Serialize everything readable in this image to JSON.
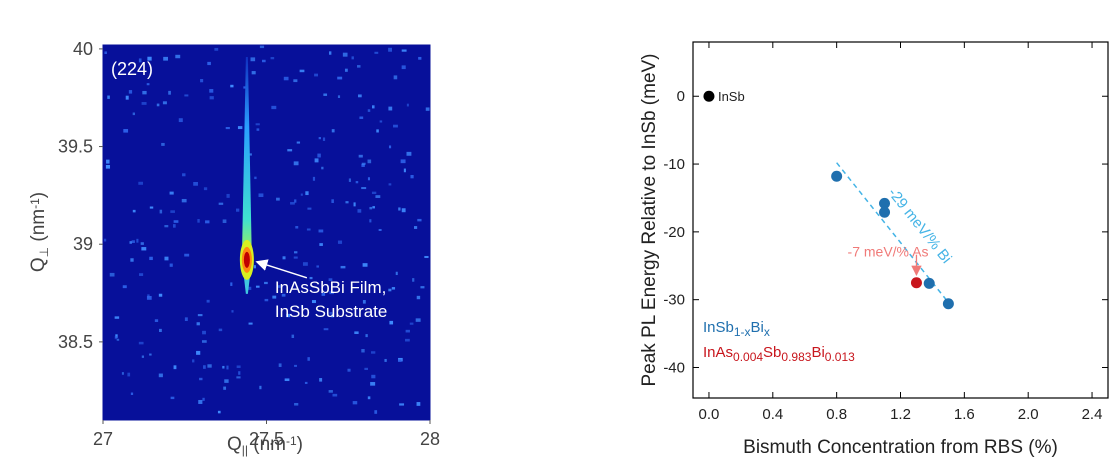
{
  "chart_data": [
    {
      "type": "heatmap",
      "title": "(224)",
      "xlabel": [
        {
          "text": "Q"
        },
        {
          "text": "||",
          "sub": true
        },
        {
          "text": " (nm"
        },
        {
          "text": "-1",
          "sup": true
        },
        {
          "text": ")"
        }
      ],
      "ylabel": [
        {
          "text": "Q"
        },
        {
          "text": "⊥",
          "sub": true
        },
        {
          "text": " (nm"
        },
        {
          "text": "-1",
          "sup": true
        },
        {
          "text": ")"
        }
      ],
      "xlim": [
        27,
        28
      ],
      "xticks": [
        27,
        27.5,
        28
      ],
      "ylim": [
        38.1,
        40.02
      ],
      "yticks": [
        40,
        39.5,
        39,
        38.5
      ],
      "peak": {
        "x": 27.44,
        "y": 38.92
      },
      "annotation": [
        "InAsSbBi Film,",
        "InSb Substrate"
      ]
    },
    {
      "type": "scatter",
      "xlabel": "Bismuth Concentration from RBS (%)",
      "ylabel": "Peak PL Energy Relative to InSb (meV)",
      "xlim": [
        -0.1,
        2.5
      ],
      "xticks": [
        {
          "value": 0,
          "label": "0.0"
        },
        0.4,
        0.8,
        1.2,
        1.6,
        {
          "value": 2,
          "label": "2.0"
        },
        2.4
      ],
      "ylim": [
        -44.5,
        8
      ],
      "yticks": [
        0,
        -10,
        -20,
        -30,
        -40
      ],
      "series": [
        {
          "name": [
            {
              "text": "InSb"
            }
          ],
          "color": "#000000",
          "x": [
            0
          ],
          "values": [
            0
          ]
        },
        {
          "name": [
            {
              "text": "InSb"
            },
            {
              "text": "1-x",
              "sub": true
            },
            {
              "text": "Bi"
            },
            {
              "text": "x",
              "sub": true
            }
          ],
          "color": "#1f6fae",
          "x": [
            0.8,
            1.1,
            1.1,
            1.38,
            1.5
          ],
          "values": [
            -11.8,
            -15.8,
            -17.1,
            -27.6,
            -30.6
          ]
        },
        {
          "name": [
            {
              "text": "InAs"
            },
            {
              "text": "0.004",
              "sub": true
            },
            {
              "text": "Sb"
            },
            {
              "text": "0.983",
              "sub": true
            },
            {
              "text": "Bi"
            },
            {
              "text": "0.013",
              "sub": true
            }
          ],
          "color": "#c8161d",
          "x": [
            1.3
          ],
          "values": [
            -27.5
          ]
        }
      ],
      "fit": {
        "x": [
          0.8,
          1.52
        ],
        "values": [
          -9.8,
          -31
        ],
        "color": "#45b4e6",
        "label": "-29 meV/% Bi"
      },
      "as_annotation": {
        "text": "-7 meV/% As",
        "color": "#f07a78"
      }
    }
  ]
}
